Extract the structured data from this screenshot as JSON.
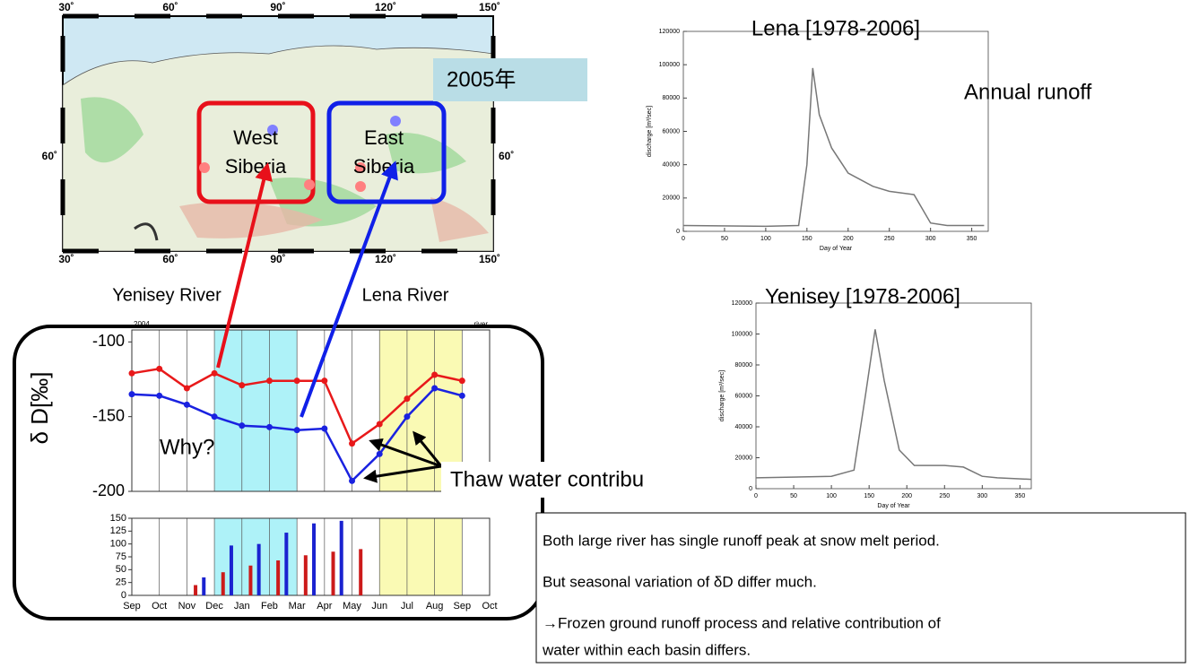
{
  "map": {
    "lon_labels": [
      "30˚",
      "60˚",
      "90˚",
      "120˚",
      "150˚"
    ],
    "lat_label": "60˚",
    "regions": [
      [
        "West",
        "Siberia"
      ],
      [
        "East",
        "Siberia"
      ]
    ],
    "year_label": "2005年",
    "rivers": [
      "Yenisey River",
      "Lena River"
    ]
  },
  "annotations": {
    "annual_runoff": "Annual runoff",
    "why": "Why?",
    "thaw": "Thaw water contribu",
    "isotope_ylabel": "δ D[‰]"
  },
  "notes": [
    "Both large river has single runoff peak at snow melt period.",
    "But seasonal variation of δD differ much.",
    "→Frozen ground runoff process and relative contribution of",
    "water within each basin differs."
  ],
  "chart_data": [
    {
      "type": "line",
      "title": "Lena [1978-2006]",
      "xlabel": "Day of Year",
      "ylabel": "discharge [m³/sec]",
      "x": [
        0,
        100,
        140,
        150,
        157,
        165,
        180,
        200,
        230,
        250,
        280,
        300,
        320,
        365
      ],
      "values": [
        3500,
        3000,
        3500,
        40000,
        98000,
        70000,
        50000,
        35000,
        27000,
        24000,
        22000,
        5000,
        3500,
        3500
      ],
      "color": "#777777",
      "xlim": [
        0,
        370
      ],
      "xticks": [
        0,
        50,
        100,
        150,
        200,
        250,
        300,
        350
      ],
      "ylim": [
        0,
        120000
      ],
      "yticks": [
        0,
        20000,
        40000,
        60000,
        80000,
        100000,
        120000
      ]
    },
    {
      "type": "line",
      "title": "Yenisey [1978-2006]",
      "xlabel": "Day of Year",
      "ylabel": "discharge [m³/sec]",
      "x": [
        0,
        100,
        130,
        145,
        158,
        170,
        190,
        210,
        250,
        275,
        300,
        320,
        365
      ],
      "values": [
        7000,
        8000,
        12000,
        60000,
        103000,
        70000,
        25000,
        15000,
        15000,
        14000,
        8000,
        7000,
        6000
      ],
      "color": "#777777",
      "xlim": [
        0,
        365
      ],
      "xticks": [
        0,
        50,
        100,
        150,
        200,
        250,
        300,
        350
      ],
      "ylim": [
        0,
        120000
      ],
      "yticks": [
        0,
        20000,
        40000,
        60000,
        80000,
        100000,
        120000
      ]
    },
    {
      "type": "line",
      "title": "2004",
      "annotation": "river",
      "series": [
        {
          "color": "#e8191a",
          "values": [
            -121,
            -118,
            -131,
            -121,
            -129,
            -126,
            -126,
            -126,
            -168,
            -155,
            -138,
            -122,
            -126,
            null
          ]
        },
        {
          "color": "#1a22e0",
          "values": [
            -135,
            -136,
            -142,
            -150,
            -156,
            -157,
            -159,
            -158,
            -193,
            -175,
            -150,
            -131,
            -136,
            null
          ]
        }
      ],
      "ylim": [
        -200,
        -92
      ],
      "yticks": [
        -200,
        -150,
        -100
      ]
    },
    {
      "type": "bar",
      "categories": [
        "Sep",
        "Oct",
        "Nov",
        "Dec",
        "Jan",
        "Feb",
        "Mar",
        "Apr",
        "May",
        "Jun",
        "Jul",
        "Aug",
        "Sep",
        "Oct"
      ],
      "series": [
        {
          "color": "#1a22d0",
          "values": [
            0,
            0,
            35,
            97,
            100,
            122,
            140,
            145,
            0,
            0,
            0,
            0,
            0,
            null
          ]
        },
        {
          "color": "#cc1a1a",
          "values": [
            0,
            0,
            20,
            45,
            58,
            68,
            78,
            85,
            90,
            0,
            0,
            0,
            0,
            null
          ]
        }
      ],
      "ylim": [
        0,
        150
      ],
      "yticks": [
        0,
        25,
        50,
        75,
        100,
        125,
        150
      ]
    }
  ]
}
